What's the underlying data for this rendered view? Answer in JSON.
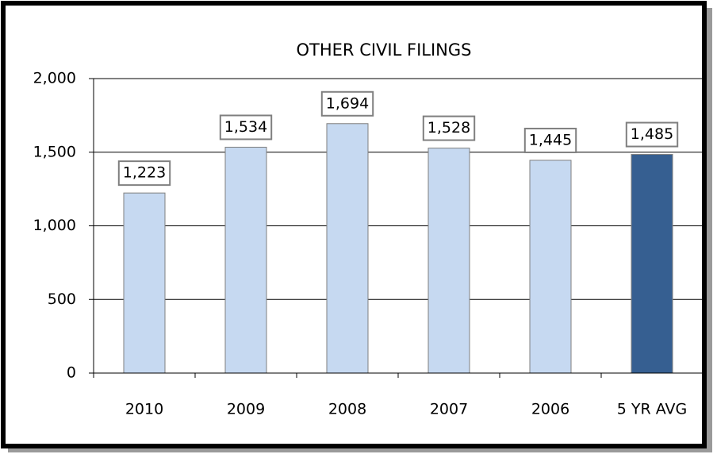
{
  "chart_data": {
    "type": "bar",
    "title": "OTHER CIVIL FILINGS",
    "categories": [
      "2010",
      "2009",
      "2008",
      "2007",
      "2006",
      "5 YR AVG"
    ],
    "values": [
      1223,
      1534,
      1694,
      1528,
      1445,
      1485
    ],
    "value_labels": [
      "1,223",
      "1,534",
      "1,694",
      "1,528",
      "1,445",
      "1,485"
    ],
    "colors": [
      "#c6d9f1",
      "#c6d9f1",
      "#c6d9f1",
      "#c6d9f1",
      "#c6d9f1",
      "#365f91"
    ],
    "ylim": [
      0,
      2000
    ],
    "yticks": [
      0,
      500,
      {
        "value": 1000,
        "label": "1,000"
      },
      {
        "value": 1500,
        "label": "1,500"
      },
      {
        "value": 2000,
        "label": "2,000"
      }
    ],
    "grid": true
  }
}
